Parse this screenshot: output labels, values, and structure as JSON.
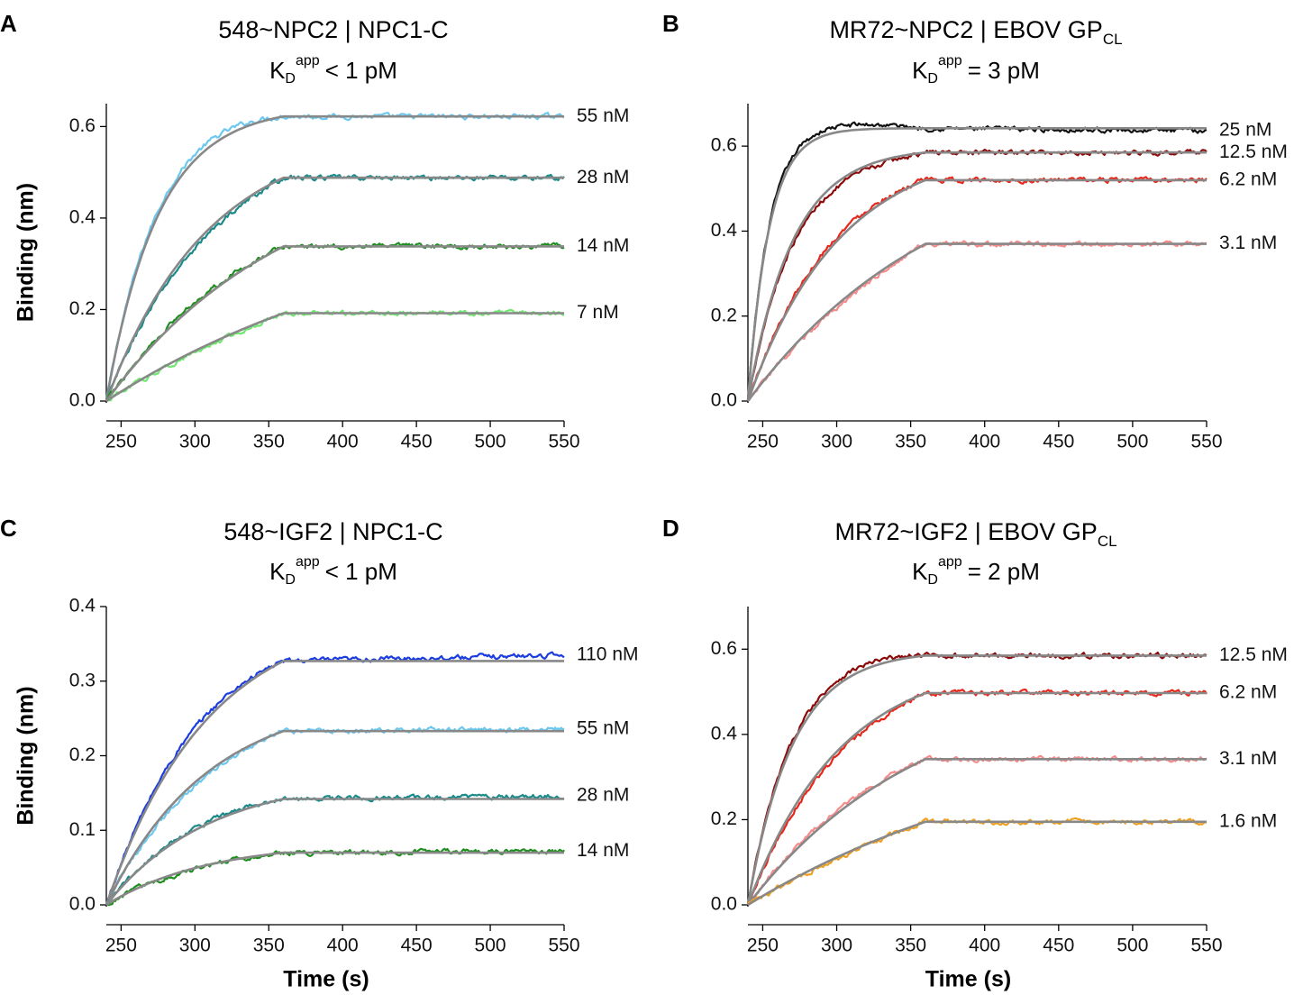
{
  "colors": {
    "fit": "#888888",
    "axis": "#000000"
  },
  "chart_data": [
    {
      "id": "A",
      "panel_label": "A",
      "type": "line",
      "title": "548~NPC2 | NPC1-C",
      "kd": {
        "base": "K",
        "sub": "D",
        "sup": "app",
        "rel": "< 1 pM"
      },
      "xlabel": "",
      "ylabel": "Binding (nm)",
      "xlim": [
        240,
        550
      ],
      "ylim": [
        0,
        0.65
      ],
      "xticks": [
        250,
        300,
        350,
        400,
        450,
        500,
        550
      ],
      "yticks": [
        0.0,
        0.2,
        0.4,
        0.6
      ],
      "ytick_labels": [
        "0.0",
        "0.2",
        "0.4",
        "0.6"
      ],
      "association_end": 360,
      "series": [
        {
          "name": "55 nM",
          "label": "55 nM",
          "plateau": 0.622,
          "k": 0.0285,
          "color": "#6cc8ee"
        },
        {
          "name": "28 nM",
          "label": "28 nM",
          "plateau": 0.488,
          "k": 0.0145,
          "color": "#1a8a8a"
        },
        {
          "name": "14 nM",
          "label": "14 nM",
          "plateau": 0.338,
          "k": 0.0082,
          "color": "#1f8f1f"
        },
        {
          "name": "7 nM",
          "label": "7 nM",
          "plateau": 0.192,
          "k": 0.0048,
          "color": "#6fe86f"
        }
      ]
    },
    {
      "id": "B",
      "panel_label": "B",
      "type": "line",
      "title": "MR72~NPC2 | EBOV GP",
      "title_sub": "CL",
      "kd": {
        "base": "K",
        "sub": "D",
        "sup": "app",
        "rel": "= 3 pM"
      },
      "xlabel": "",
      "ylabel": "",
      "xlim": [
        240,
        550
      ],
      "ylim": [
        0,
        0.7
      ],
      "xticks": [
        250,
        300,
        350,
        400,
        450,
        500,
        550
      ],
      "yticks": [
        0.0,
        0.2,
        0.4,
        0.6
      ],
      "ytick_labels": [
        "0.0",
        "0.2",
        "0.4",
        "0.6"
      ],
      "association_end": 360,
      "series": [
        {
          "name": "25 nM",
          "label": "25 nM",
          "plateau": 0.642,
          "k": 0.07,
          "color": "#111111",
          "drift": -0.006
        },
        {
          "name": "12.5 nM",
          "label": "12.5 nM",
          "plateau": 0.585,
          "k": 0.033,
          "color": "#8b0a0a"
        },
        {
          "name": "6.2 nM",
          "label": "6.2 nM",
          "plateau": 0.52,
          "k": 0.016,
          "color": "#e8261a"
        },
        {
          "name": "3.1 nM",
          "label": "3.1 nM",
          "plateau": 0.37,
          "k": 0.0075,
          "color": "#f78a8a"
        }
      ]
    },
    {
      "id": "C",
      "panel_label": "C",
      "type": "line",
      "title": "548~IGF2 | NPC1-C",
      "kd": {
        "base": "K",
        "sub": "D",
        "sup": "app",
        "rel": "< 1 pM"
      },
      "xlabel": "Time (s)",
      "ylabel": "Binding (nm)",
      "xlim": [
        240,
        550
      ],
      "ylim": [
        0,
        0.4
      ],
      "xticks": [
        250,
        300,
        350,
        400,
        450,
        500,
        550
      ],
      "yticks": [
        0.0,
        0.1,
        0.2,
        0.3,
        0.4
      ],
      "ytick_labels": [
        "0.0",
        "0.1",
        "0.2",
        "0.3",
        "0.4"
      ],
      "association_end": 360,
      "series": [
        {
          "name": "110 nM",
          "label": "110 nM",
          "plateau": 0.327,
          "k": 0.0145,
          "color": "#1b3de0",
          "drift": 0.008
        },
        {
          "name": "55 nM",
          "label": "55 nM",
          "plateau": 0.233,
          "k": 0.0145,
          "color": "#6cc8ee",
          "drift": 0.003
        },
        {
          "name": "28 nM",
          "label": "28 nM",
          "plateau": 0.142,
          "k": 0.0145,
          "color": "#1a8a8a",
          "drift": 0.004
        },
        {
          "name": "14 nM",
          "label": "14 nM",
          "plateau": 0.07,
          "k": 0.0145,
          "color": "#1f8f1f",
          "drift": 0.002
        }
      ]
    },
    {
      "id": "D",
      "panel_label": "D",
      "type": "line",
      "title": "MR72~IGF2 | EBOV GP",
      "title_sub": "CL",
      "kd": {
        "base": "K",
        "sub": "D",
        "sup": "app",
        "rel": "= 2 pM"
      },
      "xlabel": "Time (s)",
      "ylabel": "",
      "xlim": [
        240,
        550
      ],
      "ylim": [
        0,
        0.7
      ],
      "xticks": [
        250,
        300,
        350,
        400,
        450,
        500,
        550
      ],
      "yticks": [
        0.0,
        0.2,
        0.4,
        0.6
      ],
      "ytick_labels": [
        "0.0",
        "0.2",
        "0.4",
        "0.6"
      ],
      "association_end": 360,
      "series": [
        {
          "name": "12.5 nM",
          "label": "12.5 nM",
          "plateau": 0.585,
          "k": 0.033,
          "color": "#8b0a0a"
        },
        {
          "name": "6.2 nM",
          "label": "6.2 nM",
          "plateau": 0.497,
          "k": 0.016,
          "color": "#e8261a"
        },
        {
          "name": "3.1 nM",
          "label": "3.1 nM",
          "plateau": 0.342,
          "k": 0.0085,
          "color": "#f78a8a"
        },
        {
          "name": "1.6 nM",
          "label": "1.6 nM",
          "plateau": 0.195,
          "k": 0.0048,
          "color": "#f0a020"
        }
      ]
    }
  ]
}
